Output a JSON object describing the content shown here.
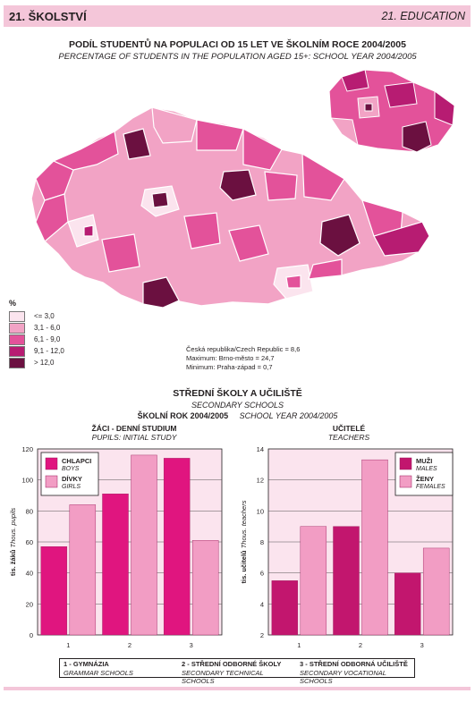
{
  "header": {
    "left": "21. ŠKOLSTVÍ",
    "right": "21. EDUCATION"
  },
  "map": {
    "title_cz": "PODÍL STUDENTŮ NA POPULACI OD 15 LET VE ŠKOLNÍM ROCE 2004/2005",
    "title_en": "PERCENTAGE OF STUDENTS IN THE POPULATION AGED 15+:  SCHOOL YEAR 2004/2005",
    "legend_unit": "%",
    "legend": [
      {
        "label": "<= 3,0",
        "color": "#fbe4ee"
      },
      {
        "label": "3,1 - 6,0",
        "color": "#f2a3c5"
      },
      {
        "label": "6,1 - 9,0",
        "color": "#e3529a"
      },
      {
        "label": "9,1 - 12,0",
        "color": "#b71c72"
      },
      {
        "label": "> 12,0",
        "color": "#6b1040"
      }
    ],
    "stats": [
      "Česká republika/Czech Republic = 8,6",
      "Maximum: Brno-město = 24,7",
      "Minimum: Praha-západ = 0,7"
    ]
  },
  "section": {
    "title_cz": "STŘEDNÍ ŠKOLY A UČILIŠTĚ",
    "title_en": "SECONDARY SCHOOLS",
    "year_cz": "ŠKOLNÍ ROK 2004/2005",
    "year_en": "SCHOOL YEAR 2004/2005"
  },
  "chart_data": [
    {
      "type": "bar",
      "title": "ŽÁCI - DENNÍ STUDIUM",
      "subtitle": "PUPILS: INITIAL STUDY",
      "ylabel_cz": "tis. žáků",
      "ylabel_en": "Thous. pupils",
      "categories": [
        "1",
        "2",
        "3"
      ],
      "ylim": [
        0,
        120
      ],
      "yticks": [
        "0",
        "20",
        "40",
        "60",
        "80",
        "100",
        "120"
      ],
      "grid": true,
      "legend_position": "top-left",
      "series": [
        {
          "name": "CHLAPCI",
          "name_en": "BOYS",
          "color": "#e0157f",
          "values": [
            57,
            91,
            114
          ]
        },
        {
          "name": "DÍVKY",
          "name_en": "GIRLS",
          "color": "#f29dc4",
          "values": [
            84,
            116,
            61
          ]
        }
      ]
    },
    {
      "type": "bar",
      "title": "UČITELÉ",
      "subtitle": "TEACHERS",
      "ylabel_cz": "tis. učitelů",
      "ylabel_en": "Thous. teachers",
      "categories": [
        "1",
        "2",
        "3"
      ],
      "ylim": [
        2,
        14
      ],
      "yticks": [
        "2",
        "4",
        "6",
        "8",
        "10",
        "12",
        "14"
      ],
      "grid": true,
      "legend_position": "top-right",
      "series": [
        {
          "name": "MUŽI",
          "name_en": "MALES",
          "color": "#c2166e",
          "values": [
            5.5,
            9.0,
            6.0
          ]
        },
        {
          "name": "ŽENY",
          "name_en": "FEMALES",
          "color": "#f29dc4",
          "values": [
            9.0,
            13.3,
            7.6
          ]
        }
      ]
    }
  ],
  "notes": [
    {
      "cz": "1 - GYMNÁZIA",
      "en": "GRAMMAR SCHOOLS"
    },
    {
      "cz": "2 - STŘEDNÍ ODBORNÉ ŠKOLY",
      "en": "SECONDARY TECHNICAL SCHOOLS"
    },
    {
      "cz": "3 - STŘEDNÍ ODBORNÁ UČILIŠTĚ",
      "en": "SECONDARY VOCATIONAL SCHOOLS"
    }
  ]
}
